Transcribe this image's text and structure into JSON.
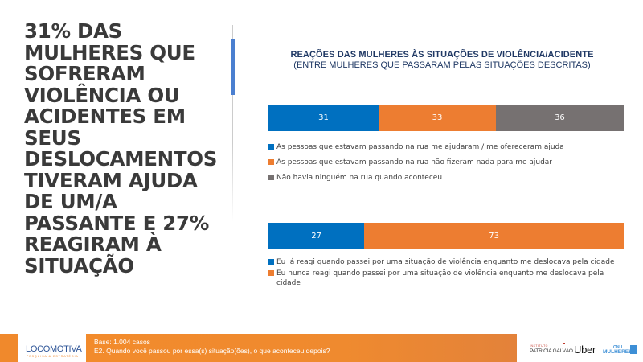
{
  "headline": "31% DAS MULHERES QUE SOFRERAM VIOLÊNCIA OU ACIDENTES EM SEUS DESLOCAMENTOS TIVERAM AJUDA DE UM/A PASSANTE E 27% REAGIRAM À SITUAÇÃO",
  "chart_data": [
    {
      "type": "bar",
      "orientation": "horizontal-stacked-100",
      "title": "REAÇÕES DAS MULHERES ÀS SITUAÇÕES DE VIOLÊNCIA/ACIDENTE",
      "subtitle": "(ENTRE MULHERES QUE PASSARAM PELAS SITUAÇÕES DESCRITAS)",
      "unit": "%",
      "series": [
        {
          "name": "As pessoas que estavam passando na rua me ajudaram / me ofereceram ajuda",
          "value": 31,
          "color": "#0070c0"
        },
        {
          "name": "As pessoas que estavam passando na rua não fizeram nada para me ajudar",
          "value": 33,
          "color": "#ed7d31"
        },
        {
          "name": "Não havia ninguém na rua quando aconteceu",
          "value": 36,
          "color": "#767171"
        }
      ],
      "legend": "bottom"
    },
    {
      "type": "bar",
      "orientation": "horizontal-stacked-100",
      "unit": "%",
      "series": [
        {
          "name": "Eu já reagi quando passei por uma situação de violência enquanto me deslocava pela cidade",
          "value": 27,
          "color": "#0070c0"
        },
        {
          "name": "Eu nunca reagi quando passei por uma situação de violência enquanto me deslocava pela cidade",
          "value": 73,
          "color": "#ed7d31"
        }
      ],
      "legend": "bottom"
    }
  ],
  "footer": {
    "logo": "LOCOMOTIVA",
    "logo_tagline": "PESQUISA & ESTRATÉGIA",
    "base": "Base: 1.004 casos",
    "question": "E2. Quando você passou por essa(s) situação(ões), o que aconteceu depois?",
    "partners": {
      "ipg_small": "INSTITUTO",
      "ipg": "PATRÍCIA GALVÃO",
      "uber": "Uber",
      "onu_top": "ONU",
      "onu": "MULHERES"
    }
  },
  "colors": {
    "accent_blue": "#0070c0",
    "accent_orange": "#ed7d31",
    "gray": "#767171",
    "footer_orange": "#f0892c",
    "title_navy": "#1f3864"
  }
}
